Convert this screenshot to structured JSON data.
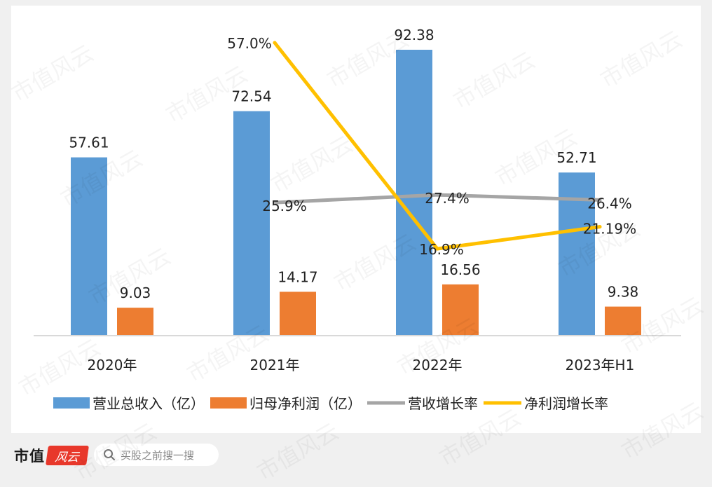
{
  "chart_data": {
    "type": "bar",
    "categories": [
      "2020年",
      "2021年",
      "2022年",
      "2023年H1"
    ],
    "series": [
      {
        "name": "营业总收入（亿）",
        "kind": "bar",
        "color": "#5b9bd5",
        "values": [
          57.61,
          72.54,
          92.38,
          52.71
        ],
        "labels": [
          "57.61",
          "72.54",
          "92.38",
          "52.71"
        ]
      },
      {
        "name": "归母净利润（亿）",
        "kind": "bar",
        "color": "#ed7d31",
        "values": [
          9.03,
          14.17,
          16.56,
          9.38
        ],
        "labels": [
          "9.03",
          "14.17",
          "16.56",
          "9.38"
        ]
      },
      {
        "name": "营收增长率",
        "kind": "line",
        "color": "#a5a5a5",
        "values": [
          null,
          25.9,
          27.4,
          26.4
        ],
        "labels": [
          "",
          "25.9%",
          "27.4%",
          "26.4%"
        ]
      },
      {
        "name": "净利润增长率",
        "kind": "line",
        "color": "#ffc000",
        "values": [
          null,
          57.0,
          16.9,
          21.19
        ],
        "labels": [
          "",
          "57.0%",
          "16.9%",
          "21.19%"
        ]
      }
    ],
    "y_left_lim": [
      0,
      100
    ],
    "y_right_lim": [
      0,
      57
    ],
    "grid": false,
    "legend": "bottom"
  },
  "footer": {
    "brand": "市值",
    "logo_text": "风云",
    "search_placeholder": "买股之前搜一搜",
    "icon": "search-icon"
  },
  "watermark": "市值风云"
}
